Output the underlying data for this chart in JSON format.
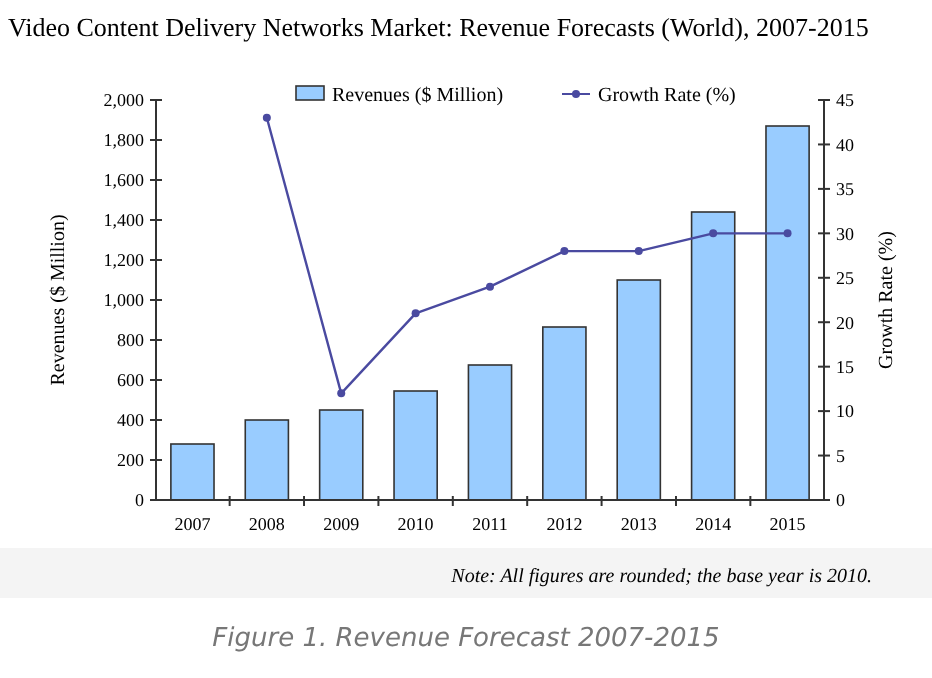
{
  "chart_data": {
    "type": "bar",
    "title": "Video Content Delivery Networks Market: Revenue Forecasts (World), 2007-2015",
    "ylabel": "Revenues ($ Million)",
    "y2label": "Growth Rate (%)",
    "categories": [
      "2007",
      "2008",
      "2009",
      "2010",
      "2011",
      "2012",
      "2013",
      "2014",
      "2015"
    ],
    "series": [
      {
        "name": "Revenues ($ Million)",
        "color": "#99ccff",
        "values": [
          280,
          400,
          450,
          545,
          675,
          865,
          1100,
          1440,
          1870
        ]
      },
      {
        "name": "Growth Rate (%)",
        "type": "line",
        "axis": "y2",
        "color": "#4a4aa0",
        "marker": "circle",
        "values": [
          null,
          43,
          12,
          21,
          24,
          28,
          28,
          30,
          30
        ]
      }
    ],
    "ylim": [
      0,
      2000
    ],
    "yticks": [
      {
        "value": 0,
        "label": "0"
      },
      {
        "value": 200,
        "label": "200"
      },
      {
        "value": 400,
        "label": "400"
      },
      {
        "value": 600,
        "label": "600"
      },
      {
        "value": 800,
        "label": "800"
      },
      {
        "value": 1000,
        "label": "1,000"
      },
      {
        "value": 1200,
        "label": "1,200"
      },
      {
        "value": 1400,
        "label": "1,400"
      },
      {
        "value": 1600,
        "label": "1,600"
      },
      {
        "value": 1800,
        "label": "1,800"
      },
      {
        "value": 2000,
        "label": "2,000"
      }
    ],
    "y2lim": [
      0,
      45
    ],
    "y2ticks": [
      0,
      5,
      10,
      15,
      20,
      25,
      30,
      35,
      40,
      45
    ],
    "legend": "top",
    "grid": false,
    "annotations": [
      "Note: All figures are rounded; the base year is 2010.",
      "Figure 1. Revenue Forecast 2007-2015"
    ]
  }
}
